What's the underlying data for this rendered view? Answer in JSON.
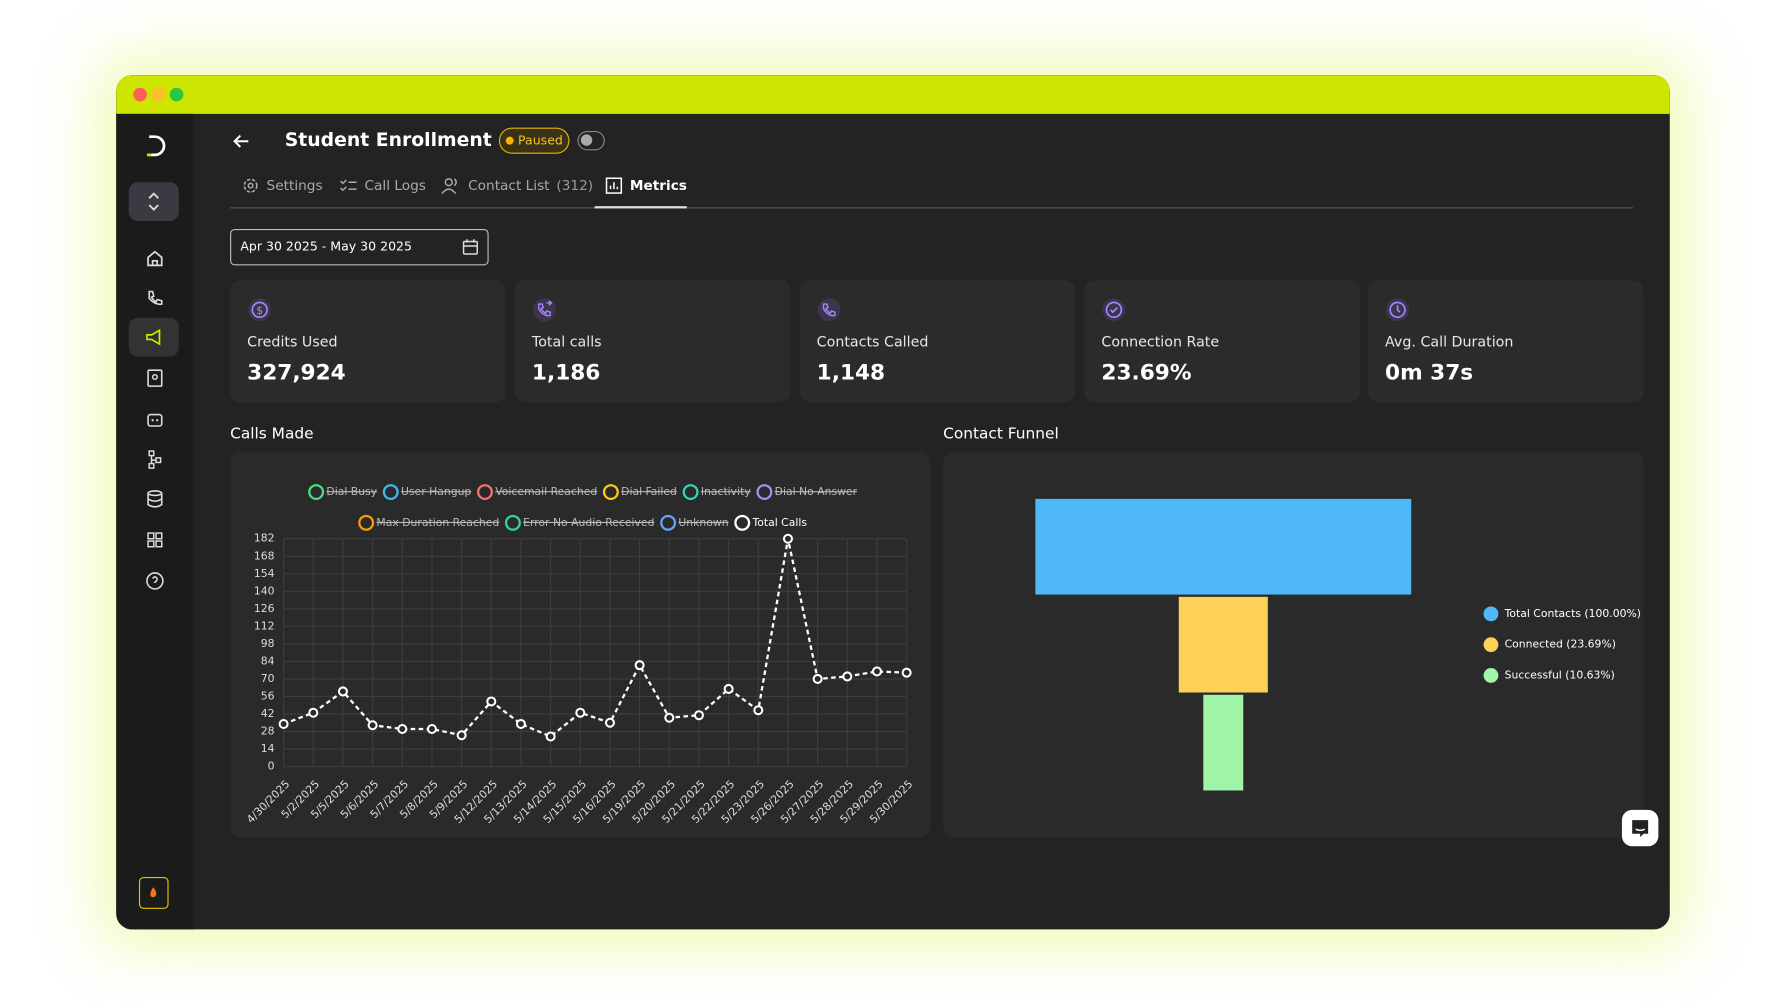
{
  "header": {
    "title": "Student Enrollment",
    "status": "Paused"
  },
  "tabs": [
    {
      "label": "Settings"
    },
    {
      "label": "Call Logs"
    },
    {
      "label": "Contact List",
      "count": "(312)"
    },
    {
      "label": "Metrics"
    }
  ],
  "date_range": "Apr 30 2025 - May 30 2025",
  "kpis": [
    {
      "label": "Credits Used",
      "value": "327,924"
    },
    {
      "label": "Total calls",
      "value": "1,186"
    },
    {
      "label": "Contacts Called",
      "value": "1,148"
    },
    {
      "label": "Connection Rate",
      "value": "23.69%"
    },
    {
      "label": "Avg. Call Duration",
      "value": "0m 37s"
    }
  ],
  "chart_data": [
    {
      "type": "line",
      "title": "Calls Made",
      "categories": [
        "4/30/2025",
        "5/2/2025",
        "5/5/2025",
        "5/6/2025",
        "5/7/2025",
        "5/8/2025",
        "5/9/2025",
        "5/12/2025",
        "5/13/2025",
        "5/14/2025",
        "5/15/2025",
        "5/16/2025",
        "5/19/2025",
        "5/20/2025",
        "5/21/2025",
        "5/22/2025",
        "5/23/2025",
        "5/26/2025",
        "5/27/2025",
        "5/28/2025",
        "5/29/2025",
        "5/30/2025"
      ],
      "series": [
        {
          "name": "Dial Busy",
          "color": "#4ade80",
          "hidden": true
        },
        {
          "name": "User Hangup",
          "color": "#38bdf8",
          "hidden": true
        },
        {
          "name": "Voicemail Reached",
          "color": "#f87171",
          "hidden": true
        },
        {
          "name": "Dial Failed",
          "color": "#facc15",
          "hidden": true
        },
        {
          "name": "Inactivity",
          "color": "#2dd4bf",
          "hidden": true
        },
        {
          "name": "Dial No Answer",
          "color": "#a78bfa",
          "hidden": true
        },
        {
          "name": "Max Duration Reached",
          "color": "#f59e0b",
          "hidden": true
        },
        {
          "name": "Error No Audio Received",
          "color": "#34d399",
          "hidden": true
        },
        {
          "name": "Unknown",
          "color": "#60a5fa",
          "hidden": true
        },
        {
          "name": "Total Calls",
          "color": "#ffffff",
          "values": [
            34,
            43,
            60,
            33,
            30,
            30,
            25,
            52,
            34,
            24,
            43,
            35,
            81,
            39,
            41,
            62,
            45,
            182,
            70,
            72,
            76,
            75
          ]
        }
      ],
      "ylim": [
        0,
        182
      ],
      "yticks": [
        0,
        14,
        28,
        42,
        56,
        70,
        84,
        98,
        112,
        126,
        140,
        154,
        168,
        182
      ],
      "grid": true
    },
    {
      "type": "funnel",
      "title": "Contact Funnel",
      "categories": [
        "Total Contacts (100.00%)",
        "Connected (23.69%)",
        "Successful (10.63%)"
      ],
      "values": [
        100,
        23.69,
        10.63
      ],
      "colors": [
        "#4fb8f9",
        "#fdd158",
        "#a0f5a8"
      ],
      "legend": "right"
    }
  ]
}
